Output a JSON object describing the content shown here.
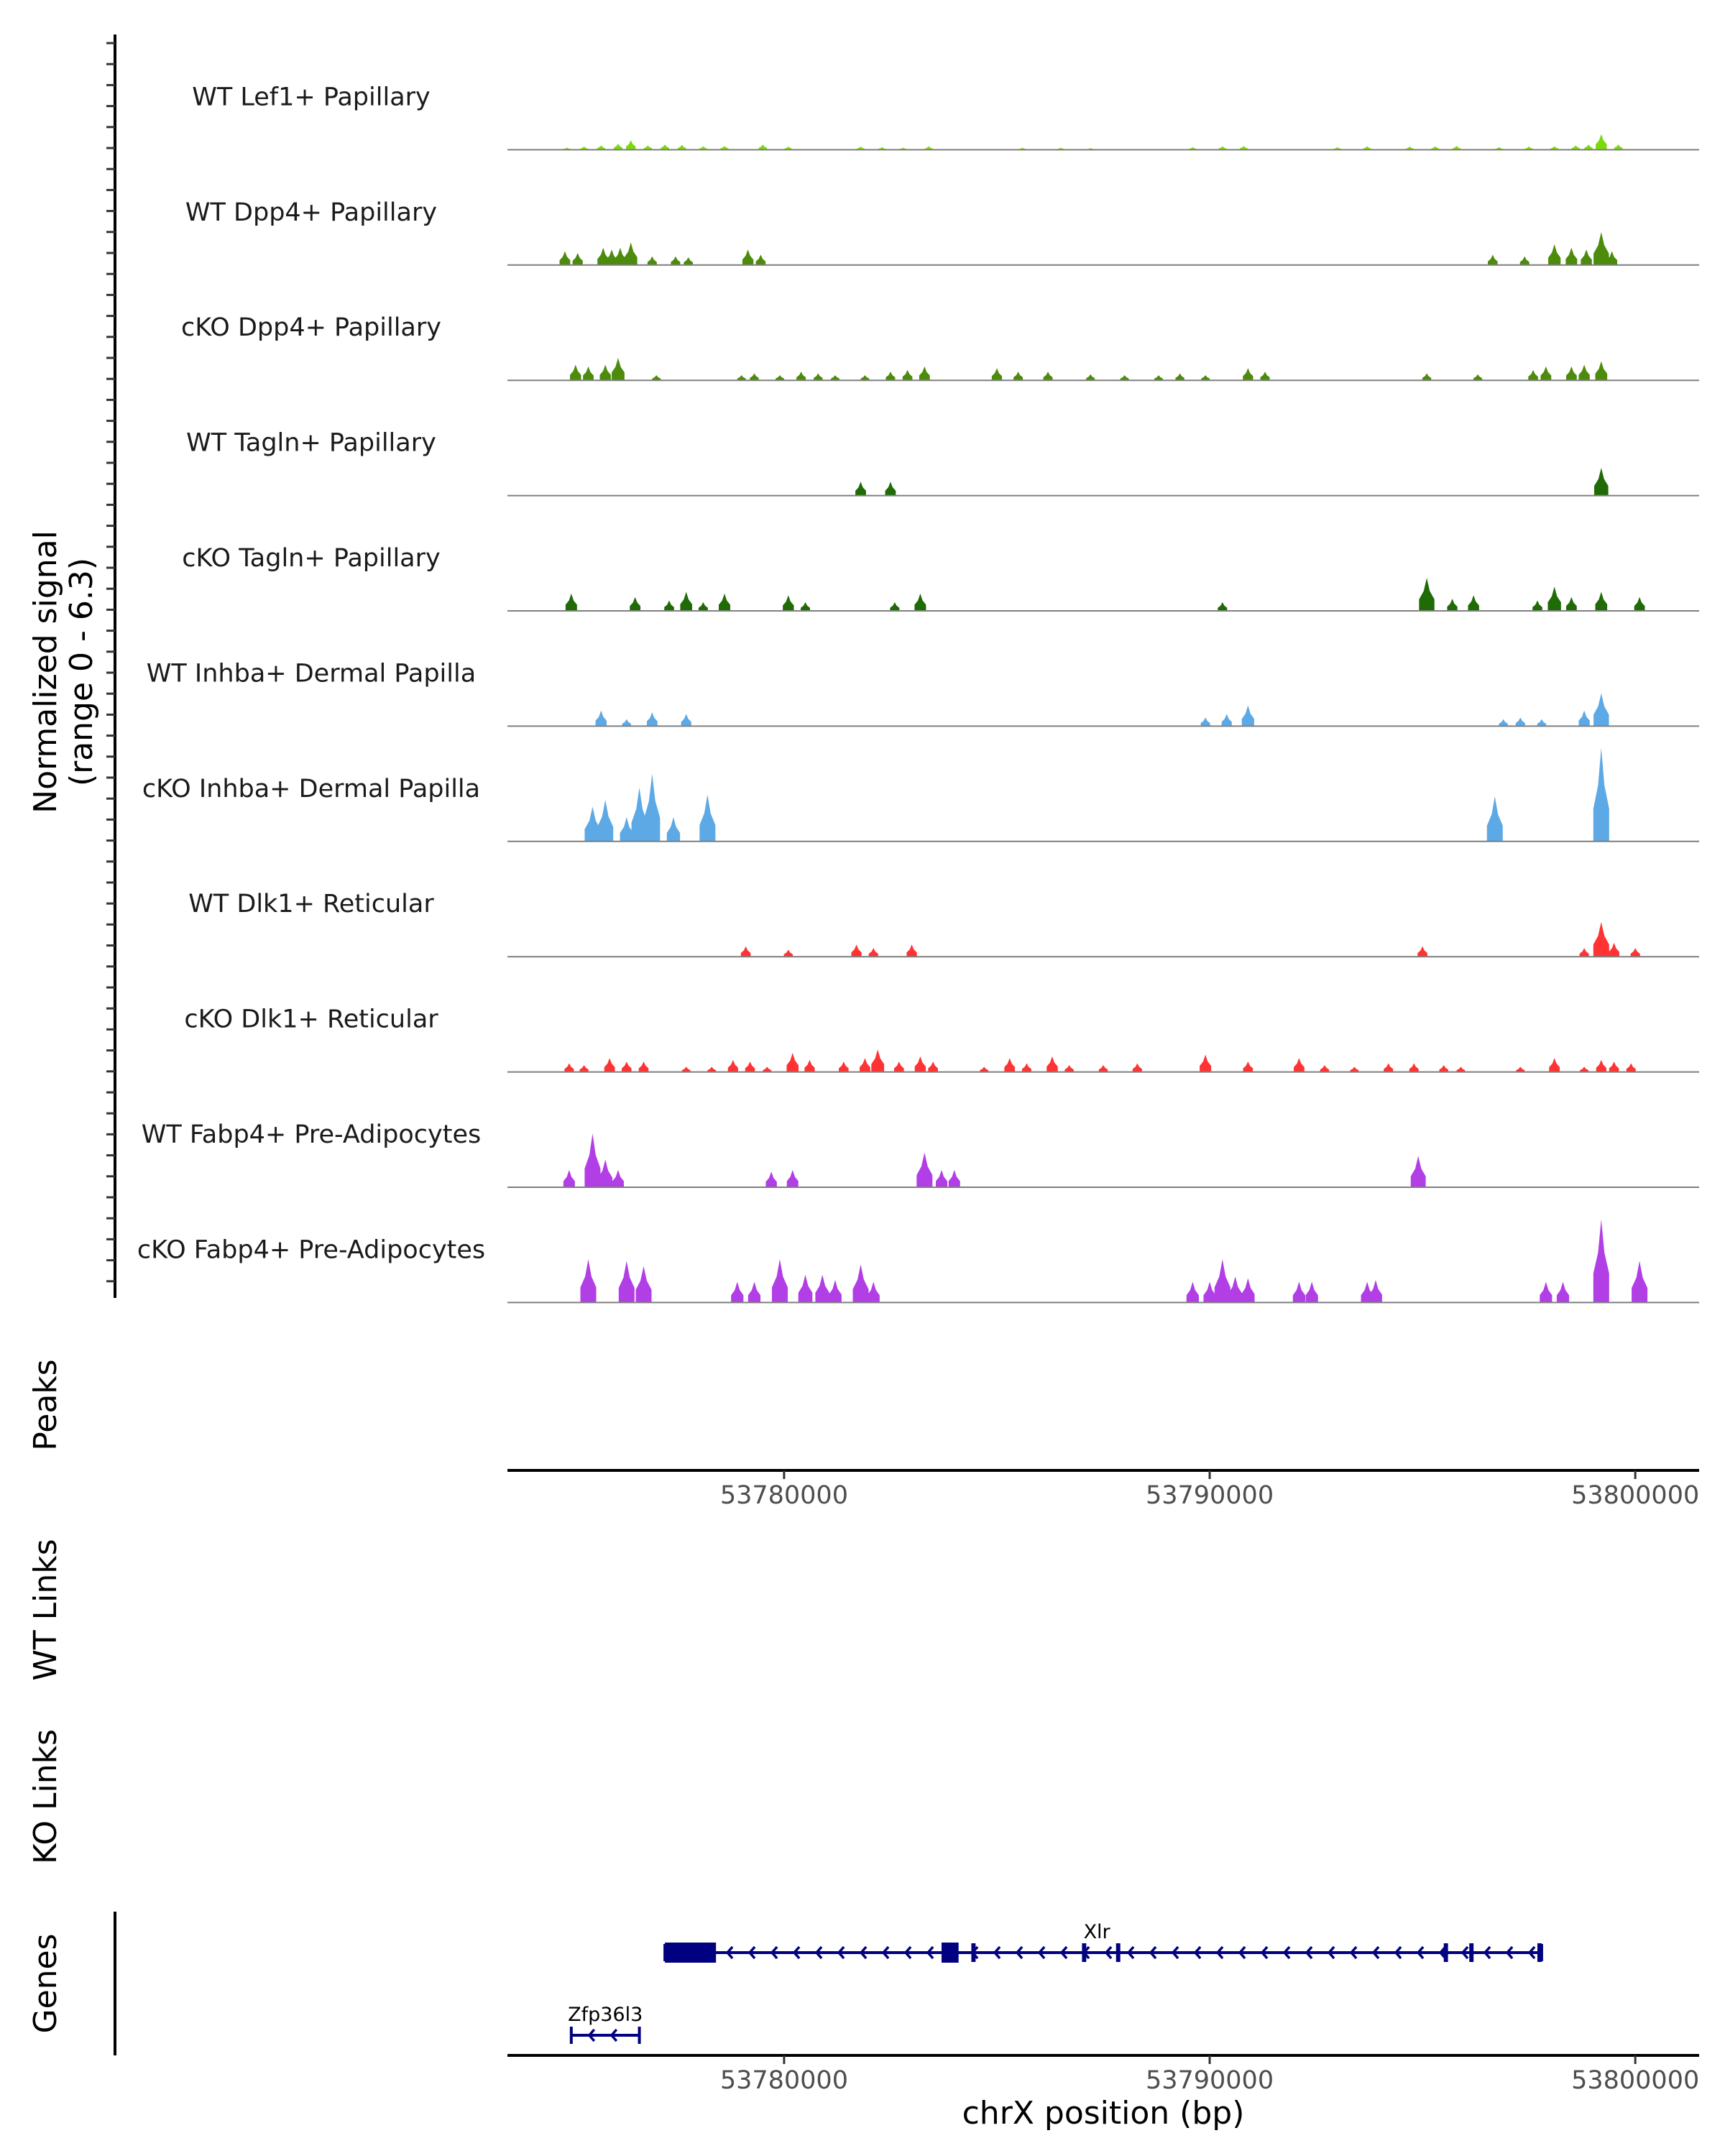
{
  "chart_data": {
    "type": "area",
    "title": "",
    "region": {
      "chrom": "chrX",
      "start": 53773500,
      "end": 53801500
    },
    "signal_axis": {
      "label_line1": "Normalized signal",
      "label_line2": "(range 0 - 6.3)",
      "range": [
        0,
        6.3
      ]
    },
    "xlabel": "chrX position (bp)",
    "xticks": [
      53780000,
      53790000,
      53800000
    ],
    "xtick_labels": [
      "53780000",
      "53790000",
      "53800000"
    ],
    "tracks": [
      {
        "name": "WT Lef1+ Papillary",
        "color": "#7cd90b",
        "peaks": [
          [
            53774900,
            0.12
          ],
          [
            53775300,
            0.18
          ],
          [
            53775700,
            0.25
          ],
          [
            53776100,
            0.35
          ],
          [
            53776400,
            0.55
          ],
          [
            53776800,
            0.25
          ],
          [
            53777200,
            0.3
          ],
          [
            53777600,
            0.28
          ],
          [
            53778100,
            0.2
          ],
          [
            53778600,
            0.22
          ],
          [
            53779500,
            0.3
          ],
          [
            53780100,
            0.18
          ],
          [
            53781800,
            0.18
          ],
          [
            53782300,
            0.15
          ],
          [
            53782800,
            0.12
          ],
          [
            53783400,
            0.2
          ],
          [
            53785600,
            0.12
          ],
          [
            53786500,
            0.12
          ],
          [
            53787200,
            0.1
          ],
          [
            53789600,
            0.15
          ],
          [
            53790300,
            0.2
          ],
          [
            53790800,
            0.22
          ],
          [
            53793000,
            0.15
          ],
          [
            53793700,
            0.2
          ],
          [
            53794700,
            0.18
          ],
          [
            53795300,
            0.2
          ],
          [
            53795800,
            0.22
          ],
          [
            53796800,
            0.15
          ],
          [
            53797500,
            0.18
          ],
          [
            53798100,
            0.2
          ],
          [
            53798600,
            0.25
          ],
          [
            53798900,
            0.3
          ],
          [
            53799200,
            0.9
          ],
          [
            53799600,
            0.3
          ]
        ]
      },
      {
        "name": "WT Dpp4+ Papillary",
        "color": "#4c8b0b",
        "peaks": [
          [
            53774850,
            0.8
          ],
          [
            53775150,
            0.7
          ],
          [
            53775750,
            1.0
          ],
          [
            53775950,
            0.9
          ],
          [
            53776150,
            1.0
          ],
          [
            53776400,
            1.3
          ],
          [
            53776900,
            0.5
          ],
          [
            53777450,
            0.5
          ],
          [
            53777750,
            0.45
          ],
          [
            53779150,
            0.9
          ],
          [
            53779450,
            0.6
          ],
          [
            53796650,
            0.6
          ],
          [
            53797400,
            0.5
          ],
          [
            53798100,
            1.2
          ],
          [
            53798500,
            1.0
          ],
          [
            53798850,
            0.9
          ],
          [
            53799200,
            1.9
          ],
          [
            53799450,
            0.8
          ]
        ]
      },
      {
        "name": "cKO Dpp4+ Papillary",
        "color": "#4c8b0b",
        "peaks": [
          [
            53775100,
            0.9
          ],
          [
            53775400,
            0.8
          ],
          [
            53775800,
            0.9
          ],
          [
            53776100,
            1.3
          ],
          [
            53777000,
            0.3
          ],
          [
            53779000,
            0.3
          ],
          [
            53779300,
            0.4
          ],
          [
            53779900,
            0.3
          ],
          [
            53780400,
            0.5
          ],
          [
            53780800,
            0.4
          ],
          [
            53781200,
            0.3
          ],
          [
            53781900,
            0.3
          ],
          [
            53782500,
            0.5
          ],
          [
            53782900,
            0.6
          ],
          [
            53783300,
            0.8
          ],
          [
            53785000,
            0.7
          ],
          [
            53785500,
            0.5
          ],
          [
            53786200,
            0.5
          ],
          [
            53787200,
            0.35
          ],
          [
            53788000,
            0.3
          ],
          [
            53788800,
            0.3
          ],
          [
            53789300,
            0.4
          ],
          [
            53789900,
            0.3
          ],
          [
            53790900,
            0.7
          ],
          [
            53791300,
            0.5
          ],
          [
            53795100,
            0.4
          ],
          [
            53796300,
            0.35
          ],
          [
            53797600,
            0.6
          ],
          [
            53797900,
            0.8
          ],
          [
            53798500,
            0.8
          ],
          [
            53798800,
            0.9
          ],
          [
            53799200,
            1.1
          ]
        ]
      },
      {
        "name": "WT Tagln+ Papillary",
        "color": "#1f6b06",
        "peaks": [
          [
            53781800,
            0.8
          ],
          [
            53782500,
            0.8
          ],
          [
            53799200,
            1.6
          ]
        ]
      },
      {
        "name": "cKO Tagln+ Papillary",
        "color": "#1f6b06",
        "peaks": [
          [
            53775000,
            1.0
          ],
          [
            53776500,
            0.8
          ],
          [
            53777300,
            0.6
          ],
          [
            53777700,
            1.1
          ],
          [
            53778100,
            0.5
          ],
          [
            53778600,
            1.0
          ],
          [
            53780100,
            0.9
          ],
          [
            53780500,
            0.5
          ],
          [
            53782600,
            0.5
          ],
          [
            53783200,
            1.0
          ],
          [
            53790300,
            0.5
          ],
          [
            53795100,
            1.9
          ],
          [
            53795700,
            0.7
          ],
          [
            53796200,
            0.9
          ],
          [
            53797700,
            0.6
          ],
          [
            53798100,
            1.4
          ],
          [
            53798500,
            0.8
          ],
          [
            53799200,
            1.1
          ],
          [
            53800100,
            0.8
          ]
        ]
      },
      {
        "name": "WT Inhba+ Dermal Papilla",
        "color": "#5ca9e6",
        "peaks": [
          [
            53775700,
            0.9
          ],
          [
            53776300,
            0.4
          ],
          [
            53776900,
            0.8
          ],
          [
            53777700,
            0.7
          ],
          [
            53789900,
            0.5
          ],
          [
            53790400,
            0.7
          ],
          [
            53790900,
            1.2
          ],
          [
            53796900,
            0.4
          ],
          [
            53797300,
            0.5
          ],
          [
            53797800,
            0.4
          ],
          [
            53798800,
            0.9
          ],
          [
            53799200,
            1.9
          ]
        ]
      },
      {
        "name": "cKO Inhba+ Dermal Papilla",
        "color": "#5ca9e6",
        "peaks": [
          [
            53775500,
            2.0
          ],
          [
            53775800,
            2.4
          ],
          [
            53776300,
            1.4
          ],
          [
            53776600,
            3.1
          ],
          [
            53776900,
            3.9
          ],
          [
            53777400,
            1.4
          ],
          [
            53778200,
            2.7
          ],
          [
            53796700,
            2.6
          ],
          [
            53799200,
            5.4
          ]
        ]
      },
      {
        "name": "WT Dlk1+ Reticular",
        "color": "#ff3333",
        "peaks": [
          [
            53779100,
            0.6
          ],
          [
            53780100,
            0.4
          ],
          [
            53781700,
            0.7
          ],
          [
            53782100,
            0.5
          ],
          [
            53783000,
            0.7
          ],
          [
            53795000,
            0.6
          ],
          [
            53798800,
            0.5
          ],
          [
            53799200,
            2.0
          ],
          [
            53799500,
            0.8
          ],
          [
            53800000,
            0.5
          ]
        ]
      },
      {
        "name": "cKO Dlk1+ Reticular",
        "color": "#ff3333",
        "peaks": [
          [
            53774950,
            0.5
          ],
          [
            53775300,
            0.4
          ],
          [
            53775900,
            0.8
          ],
          [
            53776300,
            0.6
          ],
          [
            53776700,
            0.6
          ],
          [
            53777700,
            0.3
          ],
          [
            53778300,
            0.3
          ],
          [
            53778800,
            0.7
          ],
          [
            53779200,
            0.6
          ],
          [
            53779600,
            0.3
          ],
          [
            53780200,
            1.1
          ],
          [
            53780600,
            0.7
          ],
          [
            53781400,
            0.6
          ],
          [
            53781900,
            0.8
          ],
          [
            53782200,
            1.3
          ],
          [
            53782700,
            0.6
          ],
          [
            53783200,
            0.9
          ],
          [
            53783500,
            0.6
          ],
          [
            53784700,
            0.3
          ],
          [
            53785300,
            0.8
          ],
          [
            53785700,
            0.5
          ],
          [
            53786300,
            0.9
          ],
          [
            53786700,
            0.4
          ],
          [
            53787500,
            0.4
          ],
          [
            53788300,
            0.5
          ],
          [
            53789900,
            1.0
          ],
          [
            53790900,
            0.6
          ],
          [
            53792100,
            0.8
          ],
          [
            53792700,
            0.4
          ],
          [
            53793400,
            0.3
          ],
          [
            53794200,
            0.5
          ],
          [
            53794800,
            0.5
          ],
          [
            53795500,
            0.4
          ],
          [
            53795900,
            0.3
          ],
          [
            53797300,
            0.3
          ],
          [
            53798100,
            0.8
          ],
          [
            53798800,
            0.3
          ],
          [
            53799200,
            0.7
          ],
          [
            53799500,
            0.6
          ],
          [
            53799900,
            0.5
          ]
        ]
      },
      {
        "name": "WT Fabp4+ Pre-Adipocytes",
        "color": "#b23ee6",
        "peaks": [
          [
            53774950,
            1.0
          ],
          [
            53775500,
            3.1
          ],
          [
            53775800,
            1.6
          ],
          [
            53776100,
            1.0
          ],
          [
            53779700,
            0.9
          ],
          [
            53780200,
            1.0
          ],
          [
            53783300,
            2.0
          ],
          [
            53783700,
            1.0
          ],
          [
            53784000,
            1.0
          ],
          [
            53794900,
            1.8
          ]
        ]
      },
      {
        "name": "cKO Fabp4+ Pre-Adipocytes",
        "color": "#b23ee6",
        "peaks": [
          [
            53775400,
            2.5
          ],
          [
            53776300,
            2.4
          ],
          [
            53776700,
            2.1
          ],
          [
            53778900,
            1.2
          ],
          [
            53779300,
            1.2
          ],
          [
            53779900,
            2.5
          ],
          [
            53780500,
            1.6
          ],
          [
            53780900,
            1.6
          ],
          [
            53781200,
            1.3
          ],
          [
            53781800,
            2.2
          ],
          [
            53782100,
            1.2
          ],
          [
            53789600,
            1.2
          ],
          [
            53790000,
            1.2
          ],
          [
            53790300,
            2.5
          ],
          [
            53790600,
            1.5
          ],
          [
            53790900,
            1.4
          ],
          [
            53792100,
            1.2
          ],
          [
            53792400,
            1.2
          ],
          [
            53793700,
            1.2
          ],
          [
            53793900,
            1.3
          ],
          [
            53797900,
            1.2
          ],
          [
            53798300,
            1.2
          ],
          [
            53799200,
            4.8
          ],
          [
            53800100,
            2.4
          ]
        ]
      }
    ],
    "extra_panels": [
      "Peaks",
      "WT Links",
      "KO Links",
      "Genes"
    ],
    "genes": [
      {
        "name": "Xlr",
        "start": 53777200,
        "end": 53797800,
        "strand": "-",
        "color": "#000080",
        "exons": [
          [
            53777200,
            53778400
          ],
          [
            53783700,
            53784100
          ],
          [
            53784400,
            53784500
          ],
          [
            53787000,
            53787100
          ],
          [
            53787800,
            53787900
          ],
          [
            53795500,
            53795600
          ],
          [
            53796100,
            53796200
          ],
          [
            53797700,
            53797800
          ]
        ]
      },
      {
        "name": "Zfp36l3",
        "start": 53775000,
        "end": 53776600,
        "strand": "-",
        "color": "#000080",
        "exons": []
      }
    ]
  }
}
